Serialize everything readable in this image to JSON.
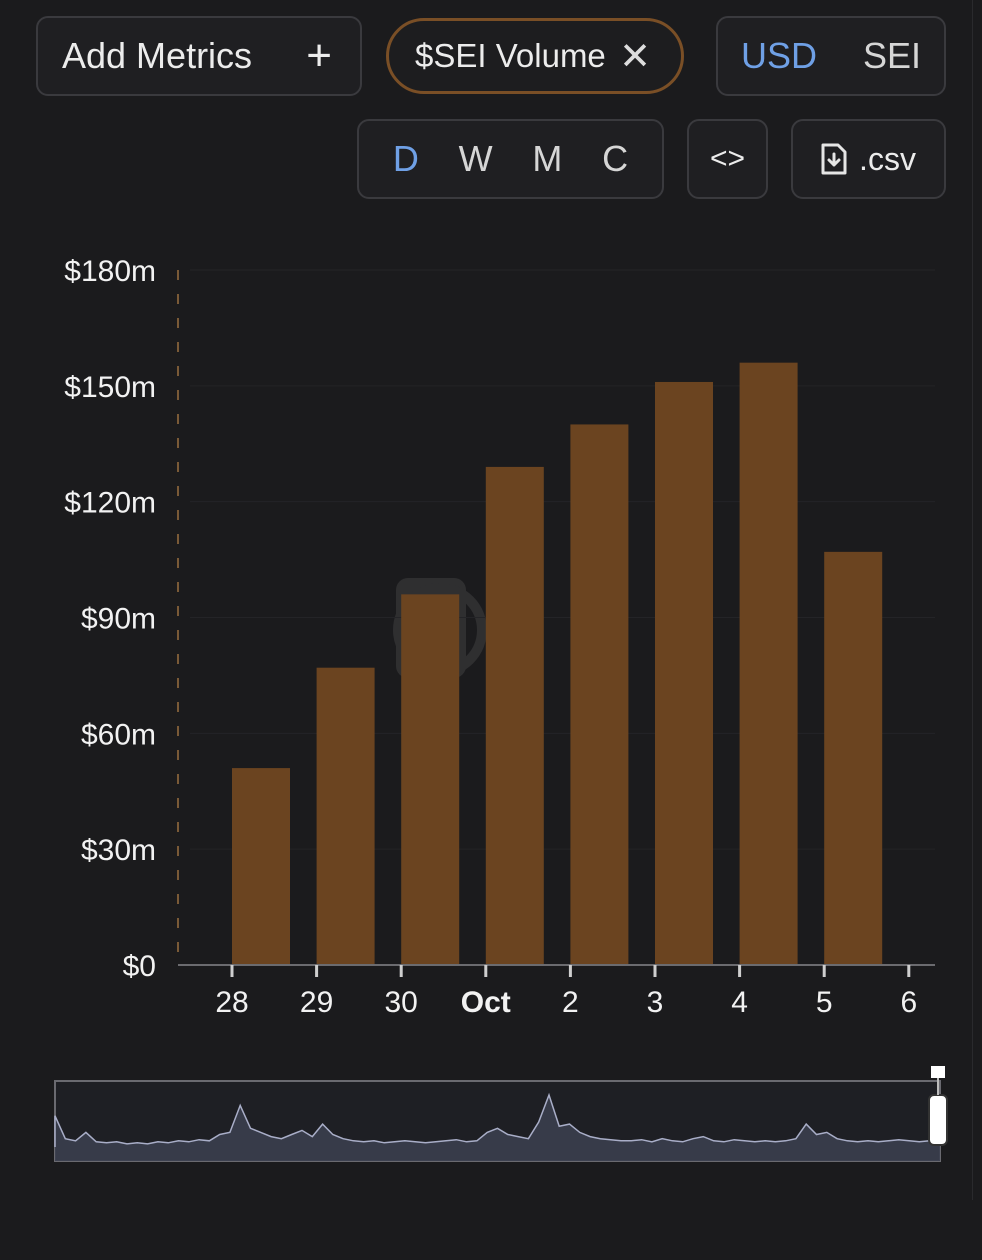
{
  "toolbar": {
    "add_metrics_label": "Add Metrics",
    "metric_chip_label": "$SEI Volume",
    "currency_options": [
      "USD",
      "SEI"
    ],
    "currency_selected": "USD",
    "period_options": [
      "D",
      "W",
      "M",
      "C"
    ],
    "period_selected": "D",
    "embed_label": "<>",
    "csv_label": ".csv"
  },
  "colors": {
    "bar": "#6b4420",
    "accent": "#6fa0e6",
    "chip_border": "#7a4f26",
    "background": "#1b1b1d"
  },
  "chart_data": {
    "type": "bar",
    "categories": [
      "28",
      "29",
      "30",
      "Oct",
      "2",
      "3",
      "4",
      "5",
      "6"
    ],
    "values": [
      51,
      77,
      96,
      129,
      140,
      151,
      156,
      107,
      null
    ],
    "y_ticks": [
      "$0",
      "$30m",
      "$60m",
      "$90m",
      "$120m",
      "$150m",
      "$180m"
    ],
    "y_tick_values": [
      0,
      30,
      60,
      90,
      120,
      150,
      180
    ],
    "ylim": [
      0,
      180
    ],
    "y_unit": "millions USD",
    "bold_categories": [
      "Oct"
    ],
    "grid": true,
    "legend": "none"
  },
  "navigator": {
    "type": "area",
    "values": [
      30,
      8,
      6,
      14,
      5,
      4,
      5,
      3,
      4,
      3,
      5,
      4,
      6,
      5,
      7,
      6,
      12,
      14,
      40,
      18,
      14,
      10,
      8,
      12,
      16,
      10,
      22,
      12,
      8,
      6,
      5,
      6,
      4,
      5,
      6,
      5,
      4,
      5,
      6,
      7,
      5,
      6,
      14,
      18,
      12,
      10,
      8,
      24,
      50,
      20,
      22,
      14,
      10,
      8,
      7,
      6,
      6,
      7,
      5,
      8,
      6,
      5,
      8,
      10,
      6,
      5,
      7,
      6,
      5,
      6,
      5,
      6,
      8,
      22,
      12,
      14,
      8,
      6,
      5,
      6,
      5,
      6,
      7,
      6,
      5,
      6,
      12
    ]
  }
}
